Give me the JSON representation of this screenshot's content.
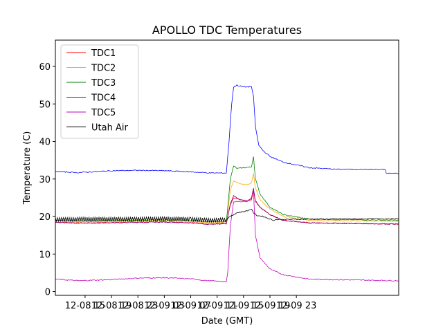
{
  "chart_data": {
    "type": "line",
    "title": "APOLLO TDC Temperatures",
    "xlabel": "Date (GMT)",
    "ylabel": "Temperature (C)",
    "xlim_hours": [
      -4.5,
      47.5
    ],
    "ylim": [
      -1,
      67
    ],
    "y_ticks": [
      0,
      10,
      20,
      30,
      40,
      50,
      60
    ],
    "x_ticks": [
      {
        "h": 0,
        "label": "12-08 15"
      },
      {
        "h": 4,
        "label": "12-08 19"
      },
      {
        "h": 8,
        "label": "12-08 23"
      },
      {
        "h": 12,
        "label": "12-09 03"
      },
      {
        "h": 16,
        "label": "12-09 07"
      },
      {
        "h": 20,
        "label": "12-09 11"
      },
      {
        "h": 24,
        "label": "12-09 15"
      },
      {
        "h": 28,
        "label": "12-09 19"
      },
      {
        "h": 32,
        "label": "12-09 23"
      }
    ],
    "legend_position": "top-left",
    "series": [
      {
        "name": "TDC1",
        "color": "#ff0000",
        "points": [
          [
            -4.5,
            18.5
          ],
          [
            0,
            18.3
          ],
          [
            6,
            18.5
          ],
          [
            12,
            18.6
          ],
          [
            16,
            18.4
          ],
          [
            19,
            18.0
          ],
          [
            21.4,
            18.2
          ],
          [
            22.0,
            23.0
          ],
          [
            22.5,
            25.0
          ],
          [
            23.5,
            24.5
          ],
          [
            24.5,
            24.0
          ],
          [
            25.2,
            24.5
          ],
          [
            25.5,
            27.0
          ],
          [
            25.8,
            24.0
          ],
          [
            26.5,
            22.5
          ],
          [
            28,
            20.5
          ],
          [
            30,
            19.0
          ],
          [
            34,
            18.3
          ],
          [
            47.5,
            18.0
          ]
        ]
      },
      {
        "name": "TDC2",
        "color": "#ffaa00",
        "points": [
          [
            -4.5,
            18.8
          ],
          [
            0,
            18.6
          ],
          [
            6,
            18.8
          ],
          [
            12,
            18.9
          ],
          [
            16,
            18.7
          ],
          [
            19,
            18.4
          ],
          [
            21.4,
            18.5
          ],
          [
            22.0,
            27.0
          ],
          [
            22.5,
            29.5
          ],
          [
            23.5,
            28.8
          ],
          [
            24.5,
            28.5
          ],
          [
            25.2,
            29.0
          ],
          [
            25.5,
            31.5
          ],
          [
            25.8,
            27.5
          ],
          [
            26.5,
            24.5
          ],
          [
            28,
            22.0
          ],
          [
            30,
            20.0
          ],
          [
            34,
            19.0
          ],
          [
            47.5,
            18.7
          ]
        ]
      },
      {
        "name": "TDC3",
        "color": "#008000",
        "points": [
          [
            -4.5,
            19.0
          ],
          [
            0,
            18.9
          ],
          [
            6,
            19.0
          ],
          [
            12,
            19.1
          ],
          [
            16,
            18.9
          ],
          [
            19,
            18.6
          ],
          [
            21.4,
            18.7
          ],
          [
            22.0,
            30.0
          ],
          [
            22.5,
            33.5
          ],
          [
            23.0,
            32.8
          ],
          [
            24.0,
            33.0
          ],
          [
            25.2,
            33.2
          ],
          [
            25.5,
            36.0
          ],
          [
            25.8,
            30.0
          ],
          [
            26.5,
            26.0
          ],
          [
            28,
            22.5
          ],
          [
            30,
            20.5
          ],
          [
            34,
            19.3
          ],
          [
            47.5,
            19.0
          ]
        ]
      },
      {
        "name": "TDC4",
        "color": "#800080",
        "points": [
          [
            -4.5,
            18.4
          ],
          [
            0,
            18.2
          ],
          [
            6,
            18.4
          ],
          [
            12,
            18.5
          ],
          [
            16,
            18.3
          ],
          [
            19,
            17.9
          ],
          [
            21.4,
            18.1
          ],
          [
            22.0,
            23.5
          ],
          [
            22.5,
            25.5
          ],
          [
            23.5,
            24.5
          ],
          [
            24.5,
            24.2
          ],
          [
            25.2,
            24.8
          ],
          [
            25.5,
            27.5
          ],
          [
            25.8,
            24.2
          ],
          [
            26.5,
            22.5
          ],
          [
            28,
            20.5
          ],
          [
            30,
            19.0
          ],
          [
            34,
            18.3
          ],
          [
            47.5,
            18.0
          ]
        ]
      },
      {
        "name": "TDC5",
        "color": "#c000c0",
        "points": [
          [
            -4.5,
            3.3
          ],
          [
            -1,
            2.9
          ],
          [
            4,
            3.2
          ],
          [
            8,
            3.6
          ],
          [
            12,
            3.7
          ],
          [
            16,
            3.4
          ],
          [
            18,
            3.0
          ],
          [
            21.4,
            2.6
          ],
          [
            21.6,
            5.0
          ],
          [
            22.0,
            17.5
          ],
          [
            22.5,
            24.0
          ],
          [
            23.5,
            24.0
          ],
          [
            24.5,
            24.0
          ],
          [
            25.2,
            25.0
          ],
          [
            25.5,
            27.0
          ],
          [
            25.8,
            15.0
          ],
          [
            26.5,
            9.0
          ],
          [
            28,
            6.0
          ],
          [
            30,
            4.5
          ],
          [
            34,
            3.3
          ],
          [
            47.5,
            2.9
          ]
        ]
      },
      {
        "name": "Utah Air",
        "color": "#000000",
        "points": [
          [
            -4.5,
            19.2
          ],
          [
            0,
            19.3
          ],
          [
            6,
            19.3
          ],
          [
            12,
            19.4
          ],
          [
            16,
            19.3
          ],
          [
            19,
            19.0
          ],
          [
            21.4,
            19.2
          ],
          [
            22.0,
            20.0
          ],
          [
            23.0,
            21.0
          ],
          [
            24.5,
            21.5
          ],
          [
            25.2,
            22.0
          ],
          [
            25.5,
            21.0
          ],
          [
            26.0,
            20.3
          ],
          [
            27.0,
            20.0
          ],
          [
            28.5,
            19.0
          ],
          [
            29.0,
            19.2
          ],
          [
            34,
            19.3
          ],
          [
            47.5,
            19.4
          ]
        ]
      },
      {
        "name": "",
        "color": "#0000ff",
        "points": [
          [
            -4.5,
            32.0
          ],
          [
            -1,
            31.7
          ],
          [
            4,
            32.2
          ],
          [
            8,
            32.3
          ],
          [
            12,
            32.2
          ],
          [
            16,
            31.9
          ],
          [
            19,
            31.6
          ],
          [
            21.4,
            31.6
          ],
          [
            21.8,
            40.0
          ],
          [
            22.2,
            50.0
          ],
          [
            22.5,
            54.5
          ],
          [
            23.0,
            55.0
          ],
          [
            24.0,
            54.5
          ],
          [
            25.2,
            54.6
          ],
          [
            25.5,
            52.0
          ],
          [
            25.8,
            44.0
          ],
          [
            26.3,
            39.0
          ],
          [
            27.0,
            37.5
          ],
          [
            28.0,
            36.0
          ],
          [
            30,
            34.5
          ],
          [
            34,
            33.0
          ],
          [
            38,
            32.6
          ],
          [
            45.5,
            32.5
          ],
          [
            45.6,
            31.5
          ],
          [
            47.5,
            31.5
          ]
        ]
      }
    ]
  }
}
